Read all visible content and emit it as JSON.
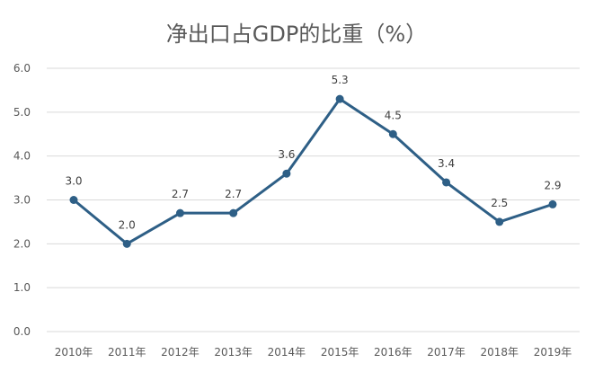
{
  "chart_data": {
    "type": "line",
    "title": "净出口占GDP的比重（%）",
    "categories": [
      "2010年",
      "2011年",
      "2012年",
      "2013年",
      "2014年",
      "2015年",
      "2016年",
      "2017年",
      "2018年",
      "2019年"
    ],
    "series": [
      {
        "values": [
          3.0,
          2.0,
          2.7,
          2.7,
          3.6,
          5.3,
          4.5,
          3.4,
          2.5,
          2.9
        ],
        "color": "#2e5f86"
      }
    ],
    "data_labels": [
      "3.0",
      "2.0",
      "2.7",
      "2.7",
      "3.6",
      "5.3",
      "4.5",
      "3.4",
      "2.5",
      "2.9"
    ],
    "y_ticks": [
      "0.0",
      "1.0",
      "2.0",
      "3.0",
      "4.0",
      "5.0",
      "6.0"
    ],
    "ylim": [
      0,
      6
    ],
    "grid": true,
    "legend": "none"
  }
}
